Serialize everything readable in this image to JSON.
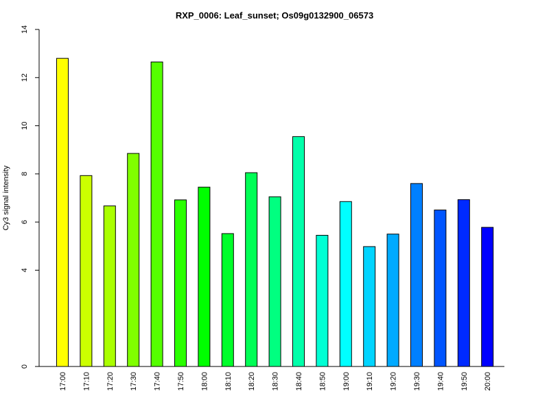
{
  "chart_data": {
    "type": "bar",
    "title": "RXP_0006: Leaf_sunset; Os09g0132900_06573",
    "xlabel": "",
    "ylabel": "Cy3 signal intensity",
    "yticks": [
      0,
      4,
      6,
      8,
      10,
      12,
      14
    ],
    "ylim": [
      0,
      14
    ],
    "grid": false,
    "categories": [
      "17:00",
      "17:10",
      "17:20",
      "17:30",
      "17:40",
      "17:50",
      "18:00",
      "18:10",
      "18:20",
      "18:30",
      "18:40",
      "18:50",
      "19:00",
      "19:10",
      "19:20",
      "19:30",
      "19:40",
      "19:50",
      "20:00"
    ],
    "values": [
      12.8,
      7.93,
      6.67,
      8.85,
      12.65,
      6.92,
      7.45,
      5.52,
      8.05,
      7.05,
      9.55,
      5.45,
      6.85,
      4.98,
      5.5,
      7.6,
      6.5,
      6.93,
      5.78
    ],
    "colors": [
      "#ffff00",
      "#ccff00",
      "#aaff00",
      "#80ff00",
      "#55ff00",
      "#2aff00",
      "#00ff00",
      "#00ff2a",
      "#00ff55",
      "#00ff80",
      "#00ffaa",
      "#00ffd4",
      "#00ffff",
      "#00d4ff",
      "#00aaff",
      "#0080ff",
      "#0055ff",
      "#002aff",
      "#0000ff"
    ]
  }
}
